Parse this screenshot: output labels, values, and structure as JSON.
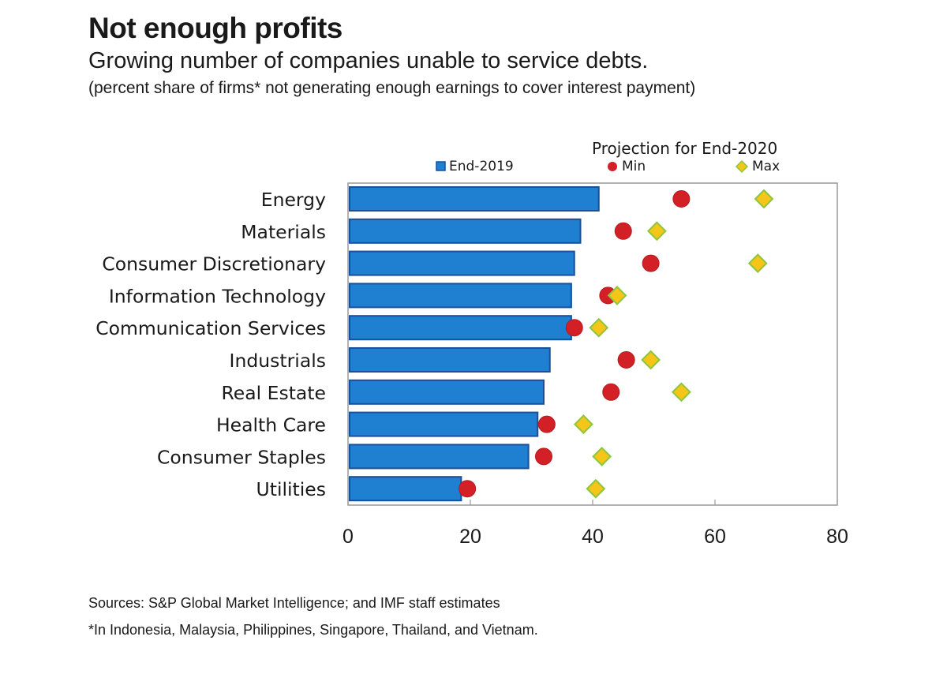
{
  "header": {
    "title": "Not enough profits",
    "subtitle": "Growing number of companies unable to service debts.",
    "note": "(percent share of firms* not generating enough earnings to cover interest payment)"
  },
  "legend": {
    "projection_title": "Projection for End-2020",
    "items": [
      "End-2019",
      "Min",
      "Max"
    ]
  },
  "footer": {
    "sources": "Sources: S&P Global Market Intelligence; and IMF staff estimates",
    "footnote": "*In Indonesia, Malaysia, Philippines, Singapore, Thailand, and Vietnam."
  },
  "colors": {
    "bar_fill": "#1f7fd0",
    "bar_stroke": "#1a4f9c",
    "min_marker": "#d32027",
    "max_marker": "#f5c518",
    "max_marker_stroke": "#8cc63f",
    "axis": "#999999"
  },
  "chart_data": {
    "type": "bar",
    "orientation": "horizontal",
    "categories": [
      "Energy",
      "Materials",
      "Consumer Discretionary",
      "Information Technology",
      "Communication Services",
      "Industrials",
      "Real Estate",
      "Health Care",
      "Consumer Staples",
      "Utilities"
    ],
    "series": [
      {
        "name": "End-2019",
        "kind": "bar",
        "values": [
          41,
          38,
          37,
          36.5,
          36.5,
          33,
          32,
          31,
          29.5,
          18.5
        ]
      },
      {
        "name": "Min",
        "kind": "circle",
        "values": [
          54.5,
          45,
          49.5,
          42.5,
          37,
          45.5,
          43,
          32.5,
          32,
          19.5
        ]
      },
      {
        "name": "Max",
        "kind": "diamond",
        "values": [
          68,
          50.5,
          67,
          44,
          41,
          49.5,
          54.5,
          38.5,
          41.5,
          40.5
        ]
      }
    ],
    "xlim": [
      0,
      80
    ],
    "xticks": [
      0,
      20,
      40,
      60,
      80
    ],
    "grid": false,
    "legend_position": "top"
  }
}
